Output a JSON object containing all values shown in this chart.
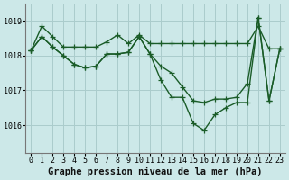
{
  "title": "Graphe pression niveau de la mer (hPa)",
  "background_color": "#cce8e8",
  "grid_color": "#aacccc",
  "line_color": "#1a5c28",
  "x_labels": [
    "0",
    "1",
    "2",
    "3",
    "4",
    "5",
    "6",
    "7",
    "8",
    "9",
    "10",
    "11",
    "12",
    "13",
    "14",
    "15",
    "16",
    "17",
    "18",
    "19",
    "20",
    "21",
    "22",
    "23"
  ],
  "ylim": [
    1015.2,
    1019.5
  ],
  "yticks": [
    1016,
    1017,
    1018,
    1019
  ],
  "series": [
    [
      1018.15,
      1018.85,
      1018.55,
      1018.25,
      1018.25,
      1018.25,
      1018.25,
      1018.4,
      1018.6,
      1018.35,
      1018.6,
      1018.35,
      1018.35,
      1018.35,
      1018.35,
      1018.35,
      1018.35,
      1018.35,
      1018.35,
      1018.35,
      1018.35,
      1018.85,
      1018.2,
      1018.2
    ],
    [
      1018.15,
      1018.55,
      1018.25,
      1018.0,
      1017.75,
      1017.65,
      1017.7,
      1018.05,
      1018.05,
      1018.1,
      1018.55,
      1018.05,
      1017.7,
      1017.5,
      1017.1,
      1016.7,
      1016.65,
      1016.75,
      1016.75,
      1016.8,
      1017.2,
      1019.1,
      1016.7,
      1018.2
    ],
    [
      1018.15,
      1018.55,
      1018.25,
      1018.0,
      1017.75,
      1017.65,
      1017.7,
      1018.05,
      1018.05,
      1018.1,
      1018.55,
      1018.05,
      1017.3,
      1016.8,
      1016.8,
      1016.05,
      1015.85,
      1016.3,
      1016.5,
      1016.65,
      1016.65,
      1019.1,
      1016.7,
      1018.2
    ]
  ],
  "marker": "+",
  "markersize": 4,
  "linewidth": 1.0,
  "title_fontsize": 7.5,
  "tick_fontsize": 6.0
}
